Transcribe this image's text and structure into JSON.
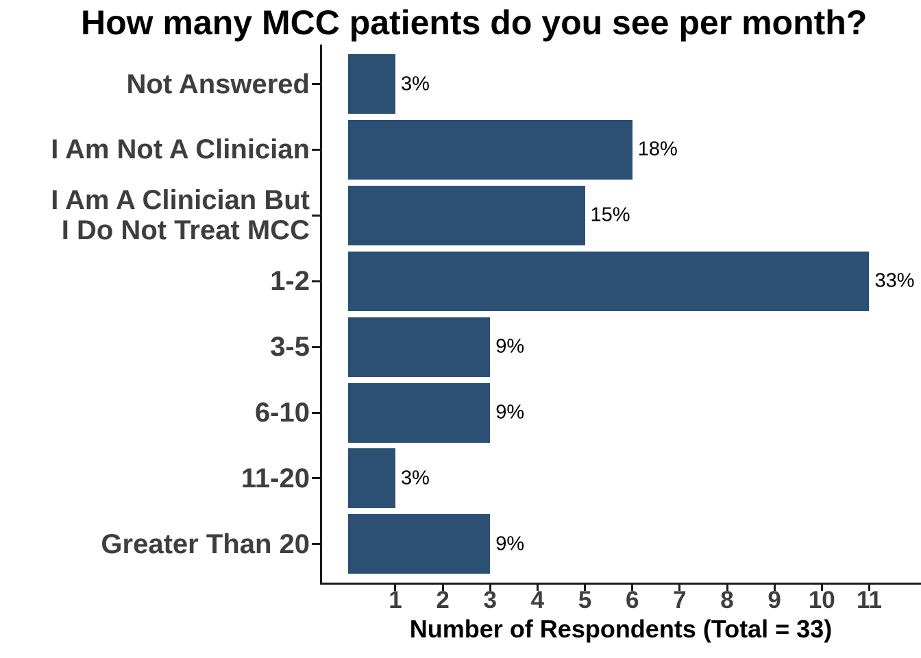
{
  "chart_data": {
    "type": "bar",
    "orientation": "horizontal",
    "title": "How many MCC patients do you see per month?",
    "xlabel": "Number of Respondents (Total = 33)",
    "ylabel": "",
    "total_respondents": 33,
    "categories": [
      "Not Answered",
      "I Am Not A Clinician",
      "I Am A Clinician But\nI Do Not Treat MCC",
      "1-2",
      "3-5",
      "6-10",
      "11-20",
      "Greater Than 20"
    ],
    "values": [
      1,
      6,
      5,
      11,
      3,
      3,
      1,
      3
    ],
    "value_labels": [
      "3%",
      "18%",
      "15%",
      "33%",
      "9%",
      "9%",
      "3%",
      "9%"
    ],
    "x_ticks": [
      1,
      2,
      3,
      4,
      5,
      6,
      7,
      8,
      9,
      10,
      11
    ],
    "xlim": [
      0,
      12
    ],
    "grid": false,
    "legend": false,
    "bar_color": "#2b5074",
    "category_label_color": "#3e3e3e",
    "tick_label_color": "#3e3e3e",
    "value_label_color": "#000000",
    "title_color": "#000000",
    "axis_color": "#1a1a1a",
    "background_color": "#ffffff"
  }
}
